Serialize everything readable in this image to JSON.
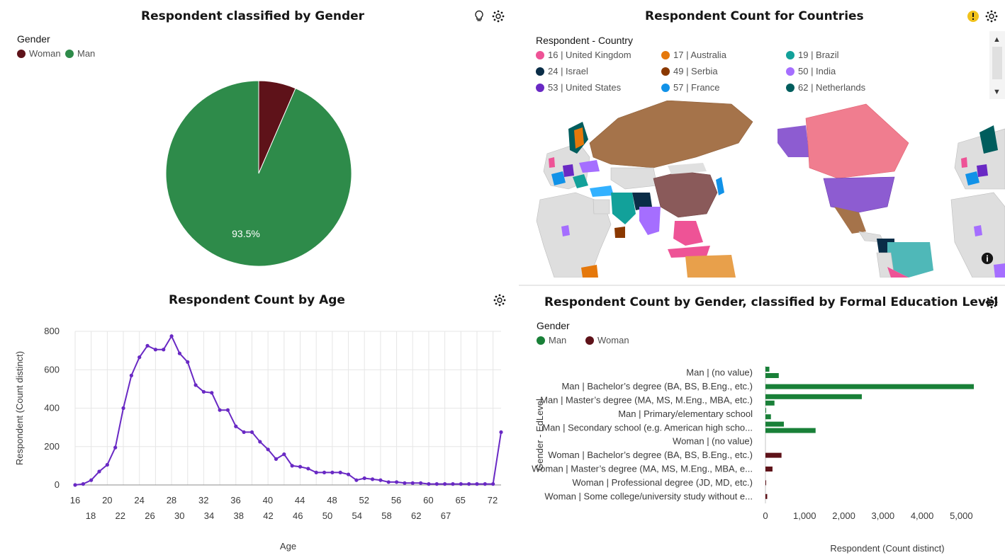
{
  "panels": {
    "gender_pie": {
      "title": "Respondent classified by Gender",
      "legend_title": "Gender",
      "icons": [
        "lightbulb-icon",
        "settings-icon"
      ]
    },
    "countries_map": {
      "title": "Respondent Count for Countries",
      "legend_title": "Respondent - Country",
      "legend": [
        {
          "label": "16 | United Kingdom",
          "color": "#ee5396"
        },
        {
          "label": "17 | Australia",
          "color": "#e5780b"
        },
        {
          "label": "19 | Brazil",
          "color": "#12a19a"
        },
        {
          "label": "24 | Israel",
          "color": "#0a2d47"
        },
        {
          "label": "49 | Serbia",
          "color": "#8a3800"
        },
        {
          "label": "50 | India",
          "color": "#a56eff"
        },
        {
          "label": "53 | United States",
          "color": "#6929c4"
        },
        {
          "label": "57 | France",
          "color": "#1192e8"
        },
        {
          "label": "62 | Netherlands",
          "color": "#005d5d"
        }
      ],
      "icons": [
        "warning-icon",
        "settings-icon",
        "info-icon"
      ]
    },
    "age_line": {
      "title": "Respondent Count by Age",
      "icons": [
        "settings-icon"
      ]
    },
    "edu_bar": {
      "title": "Respondent Count by Gender, classified by Formal Education Level",
      "legend_title": "Gender",
      "icons": [
        "settings-icon"
      ]
    }
  },
  "chart_data": [
    {
      "id": "gender_pie",
      "type": "pie",
      "title": "Respondent classified by Gender",
      "legend": [
        "Woman",
        "Man"
      ],
      "slices": [
        {
          "label": "Woman",
          "value": 6.5,
          "color": "#5e1219"
        },
        {
          "label": "Man",
          "value": 93.5,
          "color": "#2e8b4a"
        }
      ],
      "data_labels": [
        "93.5%"
      ]
    },
    {
      "id": "age_line",
      "type": "line",
      "title": "Respondent Count by Age",
      "xlabel": "Age",
      "ylabel": "Respondent (Count distinct)",
      "ylim": [
        0,
        800
      ],
      "yticks": [
        "0",
        "200",
        "400",
        "600",
        "800"
      ],
      "xticks_top": [
        "16",
        "20",
        "24",
        "28",
        "32",
        "36",
        "40",
        "44",
        "48",
        "52",
        "56",
        "60",
        "65",
        "72"
      ],
      "xticks_bottom": [
        "18",
        "22",
        "26",
        "30",
        "34",
        "38",
        "42",
        "46",
        "50",
        "54",
        "58",
        "62",
        "67"
      ],
      "color": "#6929c4",
      "series": [
        {
          "name": "Respondent",
          "values": [
            0,
            5,
            25,
            70,
            105,
            195,
            400,
            570,
            665,
            725,
            705,
            705,
            775,
            685,
            640,
            520,
            485,
            480,
            390,
            390,
            305,
            275,
            275,
            225,
            185,
            135,
            160,
            100,
            95,
            85,
            65,
            65,
            65,
            65,
            55,
            25,
            35,
            30,
            25,
            15,
            15,
            10,
            10,
            10,
            5,
            5,
            5,
            5,
            5,
            5,
            5,
            5,
            5,
            275
          ]
        }
      ]
    },
    {
      "id": "edu_bar",
      "type": "bar",
      "orientation": "horizontal",
      "title": "Respondent Count by Gender, classified by Formal Education Level",
      "xlabel": "Respondent (Count distinct)",
      "ylabel": "Gender - EdLevel",
      "xlim": [
        0,
        5500
      ],
      "xticks": [
        "0",
        "1,000",
        "2,000",
        "3,000",
        "4,000",
        "5,000"
      ],
      "legend": [
        {
          "label": "Man",
          "color": "#198038"
        },
        {
          "label": "Woman",
          "color": "#5e1219"
        }
      ],
      "categories": [
        {
          "label": "Man | (no value)",
          "gender": "Man",
          "bars": [
            100,
            340
          ]
        },
        {
          "label": "Man | Bachelor’s degree (BA, BS, B.Eng., etc.)",
          "gender": "Man",
          "bars": [
            5320
          ]
        },
        {
          "label": "Man | Master’s degree (MA, MS, M.Eng., MBA, etc.)",
          "gender": "Man",
          "bars": [
            2460,
            230
          ]
        },
        {
          "label": "Man | Primary/elementary school",
          "gender": "Man",
          "bars": [
            10,
            140
          ]
        },
        {
          "label": "Man | Secondary school (e.g. American high scho...",
          "gender": "Man",
          "bars": [
            470,
            1280
          ]
        },
        {
          "label": "Woman | (no value)",
          "gender": "Woman",
          "bars": [
            0
          ]
        },
        {
          "label": "Woman | Bachelor’s degree (BA, BS, B.Eng., etc.)",
          "gender": "Woman",
          "bars": [
            410
          ]
        },
        {
          "label": "Woman | Master’s degree (MA, MS, M.Eng., MBA, e...",
          "gender": "Woman",
          "bars": [
            180
          ]
        },
        {
          "label": "Woman | Professional degree (JD, MD, etc.)",
          "gender": "Woman",
          "bars": [
            15
          ]
        },
        {
          "label": "Woman | Some college/university study without e...",
          "gender": "Woman",
          "bars": [
            45
          ]
        }
      ]
    }
  ]
}
